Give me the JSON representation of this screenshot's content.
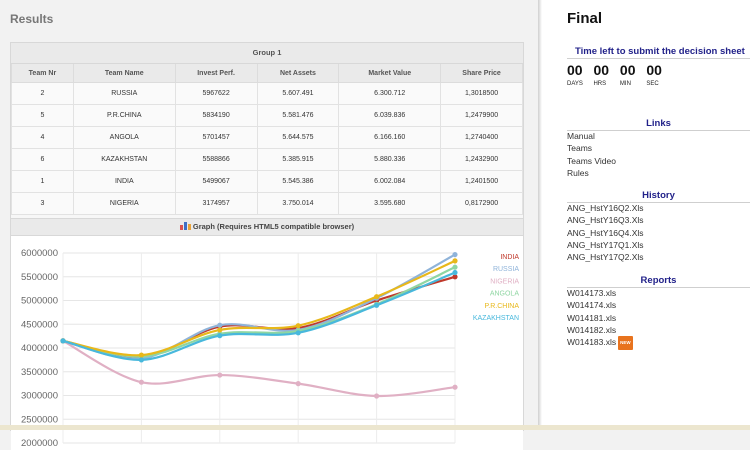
{
  "results_title": "Results",
  "group_title": "Group 1",
  "columns": [
    "Team Nr",
    "Team Name",
    "Invest Perf.",
    "Net Assets",
    "Market Value",
    "Share Price"
  ],
  "rows": [
    [
      "2",
      "RUSSIA",
      "5967622",
      "5.607.491",
      "6.300.712",
      "1,3018500"
    ],
    [
      "5",
      "P.R.CHINA",
      "5834190",
      "5.581.476",
      "6.039.836",
      "1,2479900"
    ],
    [
      "4",
      "ANGOLA",
      "5701457",
      "5.644.575",
      "6.166.160",
      "1,2740400"
    ],
    [
      "6",
      "KAZAKHSTAN",
      "5588866",
      "5.385.915",
      "5.880.336",
      "1,2432900"
    ],
    [
      "1",
      "INDIA",
      "5499067",
      "5.545.386",
      "6.002.084",
      "1,2401500"
    ],
    [
      "3",
      "NIGERIA",
      "3174957",
      "3.750.014",
      "3.595.680",
      "0,8172900"
    ]
  ],
  "graph_title": "Graph (Requires HTML5 compatible browser)",
  "chart_data": {
    "type": "line",
    "x": [
      1,
      2,
      3,
      4,
      5,
      6
    ],
    "ylim": [
      2000000,
      6000000
    ],
    "yticks": [
      "6000000",
      "5500000",
      "5000000",
      "4500000",
      "4000000",
      "3500000",
      "3000000",
      "2500000",
      "2000000"
    ],
    "grid": true,
    "legend_position": "right",
    "series": [
      {
        "name": "INDIA",
        "color": "#c0392b",
        "values": [
          4150000,
          3800000,
          4450000,
          4420000,
          5000000,
          5499067
        ]
      },
      {
        "name": "RUSSIA",
        "color": "#8fb3d9",
        "values": [
          4150000,
          3780000,
          4480000,
          4380000,
          5050000,
          5967622
        ]
      },
      {
        "name": "NIGERIA",
        "color": "#e0b0c4",
        "values": [
          4150000,
          3280000,
          3430000,
          3250000,
          2990000,
          3174957
        ]
      },
      {
        "name": "ANGOLA",
        "color": "#8fd6a2",
        "values": [
          4150000,
          3820000,
          4300000,
          4360000,
          4920000,
          5701457
        ]
      },
      {
        "name": "P.R.CHINA",
        "color": "#e8b81a",
        "values": [
          4150000,
          3850000,
          4380000,
          4470000,
          5080000,
          5834190
        ]
      },
      {
        "name": "KAZAKHSTAN",
        "color": "#48b8dc",
        "values": [
          4150000,
          3750000,
          4260000,
          4320000,
          4900000,
          5588866
        ]
      }
    ]
  },
  "sidebar": {
    "title": "Final",
    "timer_title": "Time left to submit the decision sheet",
    "countdown": [
      {
        "value": "00",
        "label": "DAYS"
      },
      {
        "value": "00",
        "label": "HRS"
      },
      {
        "value": "00",
        "label": "MIN"
      },
      {
        "value": "00",
        "label": "SEC"
      }
    ],
    "links_title": "Links",
    "links": [
      "Manual",
      "Teams",
      "Teams Video",
      "Rules"
    ],
    "history_title": "History",
    "history": [
      "ANG_HstY16Q2.Xls",
      "ANG_HstY16Q3.Xls",
      "ANG_HstY16Q4.Xls",
      "ANG_HstY17Q1.Xls",
      "ANG_HstY17Q2.Xls"
    ],
    "reports_title": "Reports",
    "reports": [
      "W014173.xls",
      "W014174.xls",
      "W014181.xls",
      "W014182.xls",
      "W014183.xls"
    ],
    "new_badge": "NEW"
  }
}
